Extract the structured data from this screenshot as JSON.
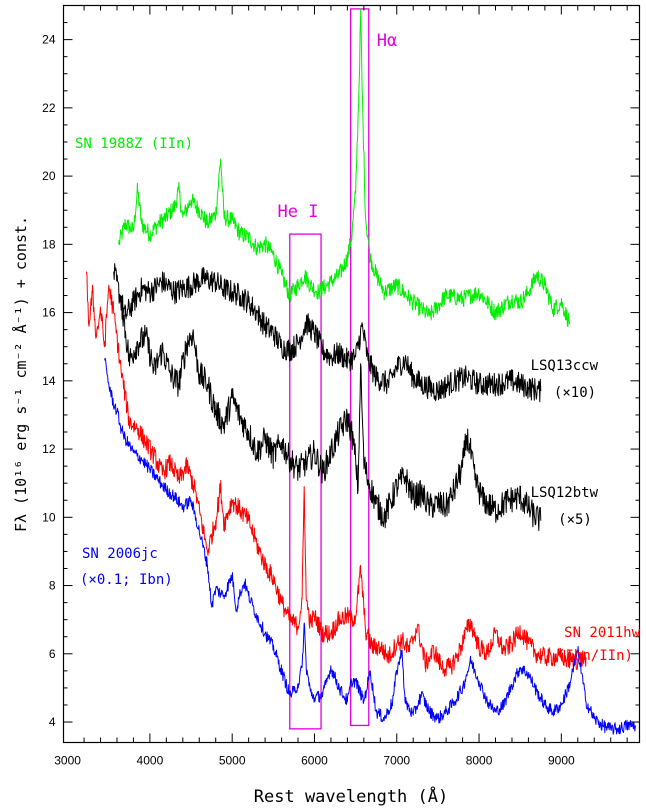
{
  "chart_data": {
    "type": "line",
    "title": "",
    "xlabel": "Rest wavelength (Å)",
    "ylabel": "Fλ (10¹⁶ erg s⁻¹ cm⁻² Å⁻¹) + const.",
    "xlim": [
      2950,
      9950
    ],
    "ylim": [
      3.4,
      25.0
    ],
    "xticks": [
      3000,
      4000,
      5000,
      6000,
      7000,
      8000,
      9000
    ],
    "yticks": [
      4,
      6,
      8,
      10,
      12,
      14,
      16,
      18,
      20,
      22,
      24
    ],
    "grid": false,
    "series": [
      {
        "name": "SN 1988Z (IIn)",
        "label_lines": [
          "SN 1988Z (IIn)"
        ],
        "color": "#00ee00",
        "noise": 0.25,
        "x": [
          3620,
          3700,
          3800,
          3850,
          3900,
          4000,
          4100,
          4200,
          4300,
          4350,
          4400,
          4500,
          4600,
          4700,
          4800,
          4860,
          4900,
          5000,
          5100,
          5200,
          5300,
          5400,
          5500,
          5600,
          5700,
          5800,
          5880,
          5950,
          6050,
          6200,
          6300,
          6400,
          6450,
          6500,
          6540,
          6562,
          6580,
          6620,
          6680,
          6750,
          6850,
          7000,
          7200,
          7400,
          7600,
          7800,
          8000,
          8200,
          8400,
          8500,
          8600,
          8700,
          8800,
          8900,
          9000,
          9100
        ],
        "y": [
          18.0,
          18.6,
          18.4,
          19.6,
          18.6,
          18.3,
          18.6,
          18.8,
          19.1,
          19.6,
          18.8,
          19.3,
          19.0,
          18.6,
          18.9,
          20.5,
          18.8,
          18.7,
          18.3,
          18.2,
          17.9,
          18.0,
          17.7,
          17.1,
          16.5,
          16.8,
          17.1,
          16.8,
          16.6,
          16.9,
          17.1,
          17.6,
          18.2,
          19.5,
          22.5,
          24.9,
          22.5,
          18.8,
          17.6,
          17.1,
          16.6,
          16.8,
          16.3,
          15.9,
          16.5,
          16.4,
          16.6,
          16.0,
          16.4,
          16.3,
          16.6,
          17.1,
          16.8,
          16.1,
          16.3,
          15.7
        ]
      },
      {
        "name": "LSQ13ccw",
        "label_lines": [
          "LSQ13ccw",
          "(×10)"
        ],
        "color": "#000000",
        "noise": 0.35,
        "x": [
          3560,
          3700,
          3800,
          3900,
          4000,
          4150,
          4300,
          4500,
          4650,
          4800,
          4900,
          5000,
          5100,
          5200,
          5300,
          5400,
          5500,
          5600,
          5700,
          5800,
          5900,
          6000,
          6100,
          6200,
          6300,
          6400,
          6500,
          6580,
          6650,
          6750,
          6900,
          7000,
          7100,
          7200,
          7300,
          7500,
          7700,
          7850,
          8000,
          8200,
          8400,
          8600,
          8750
        ],
        "y": [
          17.2,
          15.9,
          16.3,
          16.7,
          16.6,
          16.9,
          16.6,
          16.8,
          17.0,
          16.9,
          16.7,
          16.6,
          16.5,
          16.3,
          16.0,
          15.6,
          15.4,
          15.0,
          14.9,
          15.1,
          15.7,
          15.4,
          14.9,
          14.7,
          14.8,
          14.6,
          14.7,
          15.6,
          14.6,
          14.1,
          13.9,
          14.4,
          14.6,
          14.1,
          13.9,
          13.7,
          14.0,
          14.1,
          13.9,
          13.9,
          14.0,
          13.8,
          13.7
        ]
      },
      {
        "name": "LSQ12btw",
        "label_lines": [
          "LSQ12btw",
          "(×5)"
        ],
        "color": "#000000",
        "noise": 0.4,
        "x": [
          3650,
          3750,
          3850,
          3950,
          4050,
          4150,
          4250,
          4350,
          4450,
          4520,
          4600,
          4700,
          4800,
          4900,
          5000,
          5100,
          5200,
          5300,
          5400,
          5500,
          5600,
          5700,
          5800,
          5900,
          6000,
          6100,
          6200,
          6300,
          6400,
          6450,
          6500,
          6530,
          6560,
          6600,
          6650,
          6750,
          6850,
          7000,
          7100,
          7200,
          7300,
          7400,
          7500,
          7600,
          7700,
          7800,
          7850,
          7900,
          7950,
          8050,
          8200,
          8350,
          8500,
          8650,
          8750
        ],
        "y": [
          16.4,
          14.6,
          15.1,
          15.3,
          14.3,
          14.9,
          14.2,
          13.9,
          15.1,
          15.4,
          14.2,
          13.9,
          13.1,
          12.7,
          13.5,
          12.9,
          12.5,
          11.9,
          12.3,
          11.8,
          12.2,
          11.7,
          11.4,
          11.6,
          11.9,
          11.3,
          11.9,
          12.5,
          12.9,
          12.5,
          11.7,
          10.8,
          14.5,
          11.6,
          11.1,
          10.4,
          10.0,
          10.9,
          11.2,
          10.6,
          10.7,
          10.3,
          10.4,
          10.3,
          10.8,
          11.5,
          12.4,
          11.9,
          11.1,
          10.5,
          10.2,
          10.5,
          10.6,
          10.1,
          9.9
        ]
      },
      {
        "name": "SN 2011hw",
        "label_lines": [
          "SN 2011hw",
          "(Ibn/IIn)"
        ],
        "color": "#ff0000",
        "noise": 0.28,
        "x": [
          3230,
          3260,
          3300,
          3350,
          3400,
          3450,
          3500,
          3560,
          3650,
          3750,
          3850,
          3950,
          4050,
          4150,
          4250,
          4350,
          4450,
          4550,
          4650,
          4700,
          4800,
          4860,
          4900,
          5000,
          5100,
          5200,
          5300,
          5400,
          5500,
          5600,
          5700,
          5800,
          5850,
          5875,
          5900,
          5950,
          6000,
          6100,
          6200,
          6300,
          6400,
          6450,
          6500,
          6562,
          6620,
          6700,
          6800,
          6900,
          7000,
          7065,
          7150,
          7250,
          7350,
          7450,
          7550,
          7650,
          7750,
          7850,
          7900,
          8000,
          8100,
          8200,
          8300,
          8400,
          8500,
          8600,
          8700,
          8800,
          8900,
          9000,
          9100,
          9200,
          9300
        ],
        "y": [
          17.2,
          15.6,
          16.6,
          15.3,
          16.1,
          15.0,
          16.8,
          16.0,
          14.3,
          12.8,
          12.6,
          12.2,
          11.8,
          11.3,
          11.6,
          11.1,
          11.5,
          10.8,
          9.6,
          9.0,
          9.9,
          10.9,
          9.8,
          10.5,
          10.2,
          9.9,
          9.2,
          8.6,
          8.2,
          7.5,
          7.0,
          6.8,
          7.6,
          10.9,
          7.6,
          6.9,
          7.1,
          6.6,
          6.6,
          7.0,
          7.1,
          7.0,
          7.1,
          8.5,
          6.7,
          6.2,
          6.2,
          5.9,
          6.3,
          6.4,
          6.1,
          6.8,
          5.7,
          6.1,
          5.6,
          5.6,
          6.0,
          6.7,
          6.9,
          6.2,
          6.0,
          6.6,
          6.1,
          6.3,
          6.7,
          6.3,
          6.0,
          5.9,
          5.9,
          5.9,
          5.8,
          5.8,
          5.9
        ]
      },
      {
        "name": "SN 2006jc",
        "label_lines": [
          "SN 2006jc",
          "(×0.1; Ibn)"
        ],
        "color": "#0000ff",
        "noise": 0.18,
        "x": [
          3450,
          3500,
          3550,
          3600,
          3650,
          3700,
          3800,
          3900,
          4000,
          4100,
          4200,
          4300,
          4400,
          4500,
          4600,
          4700,
          4750,
          4800,
          4900,
          5000,
          5050,
          5100,
          5150,
          5200,
          5300,
          5400,
          5500,
          5600,
          5700,
          5750,
          5800,
          5850,
          5876,
          5900,
          5950,
          6000,
          6100,
          6200,
          6300,
          6400,
          6450,
          6500,
          6600,
          6678,
          6750,
          6850,
          6950,
          7000,
          7065,
          7100,
          7200,
          7300,
          7400,
          7500,
          7600,
          7700,
          7800,
          7900,
          8000,
          8100,
          8200,
          8300,
          8400,
          8500,
          8600,
          8700,
          8800,
          8900,
          9000,
          9100,
          9200,
          9300,
          9400,
          9500,
          9600,
          9700,
          9800,
          9900
        ],
        "y": [
          14.6,
          13.9,
          13.4,
          13.1,
          12.6,
          12.3,
          11.9,
          11.7,
          11.4,
          11.1,
          10.8,
          10.6,
          10.3,
          10.5,
          9.6,
          8.6,
          7.4,
          7.9,
          7.7,
          8.3,
          7.3,
          7.8,
          8.1,
          7.7,
          7.1,
          6.6,
          6.2,
          5.5,
          4.8,
          4.9,
          5.1,
          5.6,
          6.9,
          5.6,
          4.9,
          4.7,
          4.8,
          5.6,
          5.0,
          4.6,
          5.2,
          5.2,
          4.6,
          5.5,
          4.3,
          4.1,
          4.6,
          5.5,
          6.1,
          4.6,
          4.2,
          4.8,
          4.3,
          4.1,
          4.3,
          4.6,
          5.0,
          5.8,
          5.2,
          4.6,
          4.3,
          4.5,
          5.1,
          5.6,
          5.4,
          4.9,
          4.5,
          4.3,
          4.5,
          5.1,
          6.1,
          4.6,
          4.1,
          3.9,
          3.8,
          3.8,
          3.9,
          3.9
        ]
      }
    ],
    "annotations": [
      {
        "text": "He I",
        "color": "#e000e0",
        "box_x": [
          5700,
          6080
        ],
        "box_y": [
          3.8,
          18.3
        ]
      },
      {
        "text": "Hα",
        "color": "#e000e0",
        "box_x": [
          6440,
          6660
        ],
        "box_y": [
          3.9,
          24.9
        ]
      }
    ]
  }
}
